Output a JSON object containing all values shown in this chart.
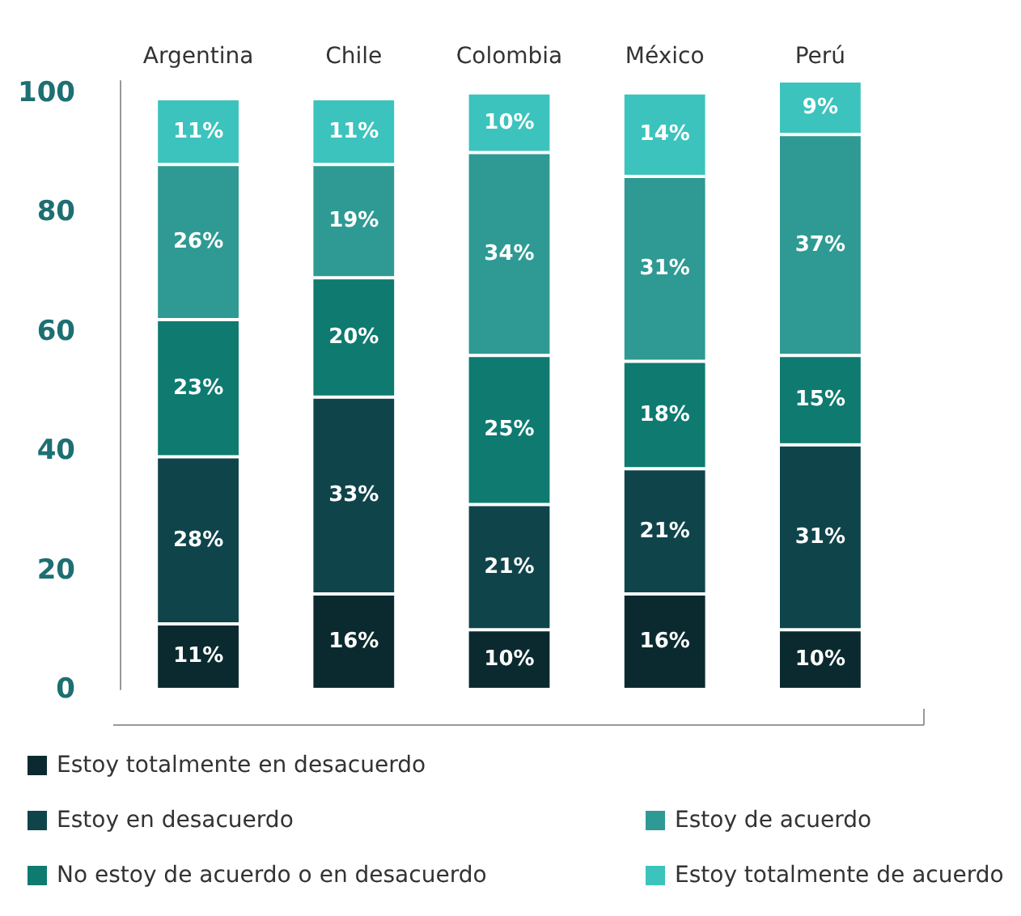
{
  "chart_data": {
    "type": "bar",
    "stacked": true,
    "categories": [
      "Argentina",
      "Chile",
      "Colombia",
      "México",
      "Perú"
    ],
    "series": [
      {
        "name": "Estoy totalmente en desacuerdo",
        "color": "#0b2a2f",
        "values": [
          11,
          16,
          10,
          16,
          10
        ],
        "value_labels": [
          "11%",
          "16%",
          "10%",
          "16%",
          "10%"
        ]
      },
      {
        "name": "Estoy en desacuerdo",
        "color": "#0f444b",
        "values": [
          28,
          33,
          21,
          21,
          31
        ],
        "value_labels": [
          "28%",
          "33%",
          "21%",
          "21%",
          "31%"
        ]
      },
      {
        "name": "No estoy de acuerdo o en desacuerdo",
        "color": "#0e7a70",
        "values": [
          23,
          20,
          25,
          18,
          15
        ],
        "value_labels": [
          "23%",
          "20%",
          "25%",
          "18%",
          "15%"
        ]
      },
      {
        "name": "Estoy de acuerdo",
        "color": "#2e9a93",
        "values": [
          26,
          19,
          34,
          31,
          37
        ],
        "value_labels": [
          "26%",
          "19%",
          "34%",
          "31%",
          "37%"
        ]
      },
      {
        "name": "Estoy totalmente de acuerdo",
        "color": "#3cc3bd",
        "values": [
          11,
          11,
          10,
          14,
          9
        ],
        "value_labels": [
          "11%",
          "11%",
          "10%",
          "14%",
          "9%"
        ]
      }
    ],
    "ylim": [
      0,
      102
    ],
    "yticks": [
      0,
      20,
      40,
      60,
      80,
      100
    ],
    "grid": false,
    "legend": "bottom"
  }
}
